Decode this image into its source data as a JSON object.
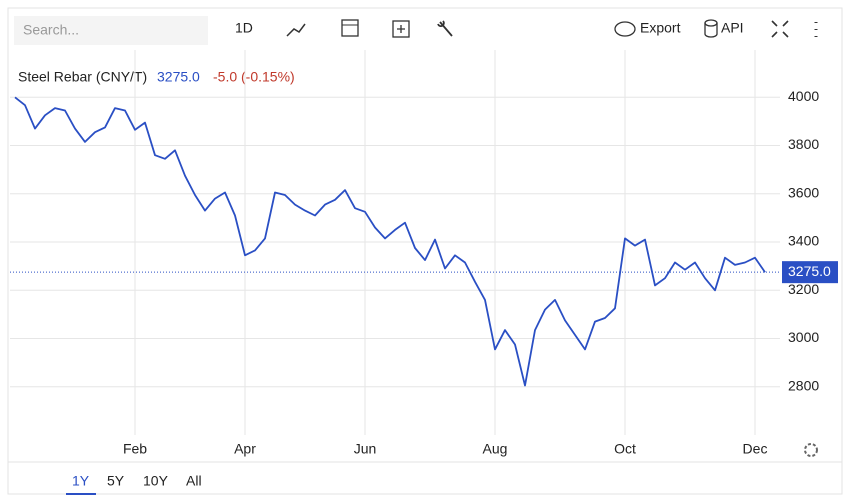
{
  "toolbar": {
    "search": "Search...",
    "interval": "1D",
    "export": "Export",
    "api": "API"
  },
  "ranges": [
    "1Y",
    "5Y",
    "10Y",
    "All"
  ],
  "chart_data": {
    "type": "line",
    "title": "Steel Rebar (CNY/T)",
    "last_label": "3275.0",
    "change": "-5.0 (-0.15%)",
    "categories": [
      null,
      null,
      null,
      null,
      null,
      null,
      null,
      null,
      null,
      null,
      null,
      null,
      "Feb",
      null,
      null,
      null,
      null,
      null,
      null,
      null,
      null,
      null,
      null,
      "Apr",
      null,
      null,
      null,
      null,
      null,
      null,
      null,
      null,
      null,
      null,
      null,
      "Jun",
      null,
      null,
      null,
      null,
      null,
      null,
      null,
      null,
      null,
      null,
      null,
      null,
      "Aug",
      null,
      null,
      null,
      null,
      null,
      null,
      null,
      null,
      null,
      null,
      null,
      null,
      "Oct",
      null,
      null,
      null,
      null,
      null,
      null,
      null,
      null,
      null,
      null,
      null,
      null,
      "Dec",
      null
    ],
    "series": [
      {
        "name": "Steel Rebar",
        "color": "#2a4fc4",
        "values": [
          4000,
          3967,
          3870,
          3925,
          3955,
          3945,
          3870,
          3815,
          3855,
          3875,
          3955,
          3945,
          3865,
          3895,
          3760,
          3745,
          3780,
          3675,
          3595,
          3530,
          3580,
          3605,
          3510,
          3345,
          3365,
          3415,
          3605,
          3595,
          3555,
          3530,
          3510,
          3555,
          3575,
          3615,
          3540,
          3525,
          3460,
          3415,
          3450,
          3480,
          3375,
          3325,
          3410,
          3290,
          3345,
          3315,
          3235,
          3160,
          2955,
          3035,
          2975,
          2805,
          3035,
          3120,
          3160,
          3075,
          3015,
          2955,
          3070,
          3085,
          3125,
          3415,
          3385,
          3410,
          3220,
          3250,
          3315,
          3285,
          3315,
          3250,
          3200,
          3335,
          3305,
          3315,
          3335,
          3275
        ]
      }
    ],
    "ylim": [
      2600,
      4200
    ],
    "yticks": [
      2800,
      3000,
      3200,
      3400,
      3600,
      3800,
      4000
    ],
    "grid": true,
    "last_line_color": "#2a4fc4"
  }
}
